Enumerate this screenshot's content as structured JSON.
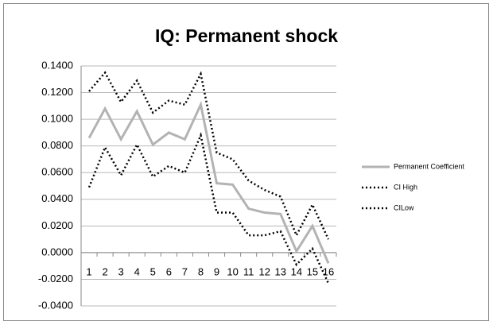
{
  "chart_data": {
    "type": "line",
    "title": "IQ: Permanent shock",
    "categories": [
      "1",
      "2",
      "3",
      "4",
      "5",
      "6",
      "7",
      "8",
      "9",
      "10",
      "11",
      "12",
      "13",
      "14",
      "15",
      "16"
    ],
    "series": [
      {
        "name": "Permanent Coefficient",
        "color": "#b3b3b3",
        "style": "solid",
        "values": [
          0.086,
          0.108,
          0.085,
          0.106,
          0.081,
          0.09,
          0.085,
          0.111,
          0.052,
          0.051,
          0.033,
          0.03,
          0.029,
          0.001,
          0.02,
          -0.008
        ]
      },
      {
        "name": "CI High",
        "color": "#000000",
        "style": "dotted",
        "values": [
          0.121,
          0.135,
          0.113,
          0.129,
          0.105,
          0.114,
          0.111,
          0.134,
          0.075,
          0.07,
          0.054,
          0.047,
          0.042,
          0.013,
          0.036,
          0.01
        ]
      },
      {
        "name": "CILow",
        "color": "#000000",
        "style": "dotted",
        "values": [
          0.049,
          0.079,
          0.058,
          0.081,
          0.057,
          0.065,
          0.06,
          0.088,
          0.03,
          0.03,
          0.013,
          0.013,
          0.016,
          -0.009,
          0.003,
          -0.023
        ]
      }
    ],
    "ylim": [
      -0.04,
      0.14
    ],
    "yticks": [
      {
        "value": -0.04,
        "label": "-0.0400"
      },
      {
        "value": -0.02,
        "label": "-0.0200"
      },
      {
        "value": 0,
        "label": "0.0000"
      },
      {
        "value": 0.02,
        "label": "0.0200"
      },
      {
        "value": 0.04,
        "label": "0.0400"
      },
      {
        "value": 0.06,
        "label": "0.0600"
      },
      {
        "value": 0.08,
        "label": "0.0800"
      },
      {
        "value": 0.1,
        "label": "0.1000"
      },
      {
        "value": 0.12,
        "label": "0.1200"
      },
      {
        "value": 0.14,
        "label": "0.1400"
      }
    ],
    "grid": true,
    "legend": "right"
  }
}
